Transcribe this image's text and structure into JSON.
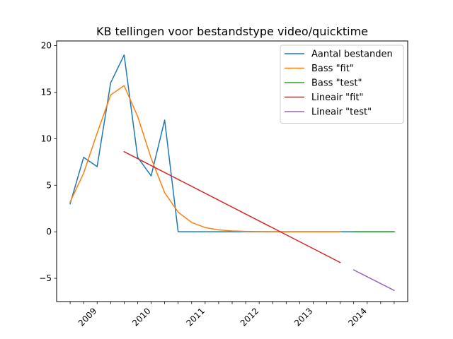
{
  "chart_data": {
    "type": "line",
    "title": "KB tellingen voor bestandstype video/quicktime",
    "xlabel": "",
    "ylabel": "",
    "x_start": 0,
    "x_step": 1,
    "xlim": [
      -1,
      25
    ],
    "ylim": [
      -7.5,
      20.5
    ],
    "yticks": [
      -5,
      0,
      5,
      10,
      15,
      20
    ],
    "xtick_positions": [
      0,
      1,
      2,
      3,
      4,
      5,
      6,
      7,
      8,
      9,
      10,
      11,
      12,
      13,
      14,
      15,
      16,
      17,
      18,
      19,
      20,
      21,
      22,
      23,
      24
    ],
    "xtick_label_positions": [
      2,
      6,
      10,
      14,
      18,
      22
    ],
    "xtick_labels": [
      "2009",
      "2010",
      "2011",
      "2012",
      "2013",
      "2014"
    ],
    "grid": false,
    "legend_position": "top-right",
    "series": [
      {
        "name": "Aantal bestanden",
        "color": "#1f77b4",
        "x": [
          0,
          1,
          2,
          3,
          4,
          5,
          6,
          7,
          8,
          9,
          10,
          11,
          12,
          13,
          14,
          15,
          16,
          17,
          18,
          19,
          20,
          21,
          22,
          23,
          24
        ],
        "values": [
          3,
          8,
          7,
          16,
          19,
          8,
          6,
          12,
          0,
          0,
          0,
          0,
          0,
          0,
          0,
          0,
          0,
          0,
          0,
          0,
          0,
          0,
          0,
          0,
          0
        ]
      },
      {
        "name": "Bass \"fit\"",
        "color": "#ff7f0e",
        "x": [
          0,
          1,
          2,
          3,
          4,
          5,
          6,
          7,
          8,
          9,
          10,
          11,
          12,
          13,
          14,
          15,
          16,
          17,
          18,
          19,
          20
        ],
        "values": [
          3.2,
          6.3,
          10.6,
          14.7,
          15.7,
          12.4,
          7.9,
          4.2,
          2.1,
          1.0,
          0.45,
          0.2,
          0.09,
          0.04,
          0.02,
          0.01,
          0,
          0,
          0,
          0,
          0
        ]
      },
      {
        "name": "Bass \"test\"",
        "color": "#2ca02c",
        "x": [
          21,
          22,
          23,
          24
        ],
        "values": [
          0,
          0,
          0,
          0
        ]
      },
      {
        "name": "Lineair \"fit\"",
        "color": "#d62728",
        "x": [
          4,
          20
        ],
        "values": [
          8.6,
          -3.3
        ]
      },
      {
        "name": "Lineair \"test\"",
        "color": "#9467bd",
        "x": [
          21,
          24
        ],
        "values": [
          -4.1,
          -6.3
        ]
      }
    ]
  }
}
